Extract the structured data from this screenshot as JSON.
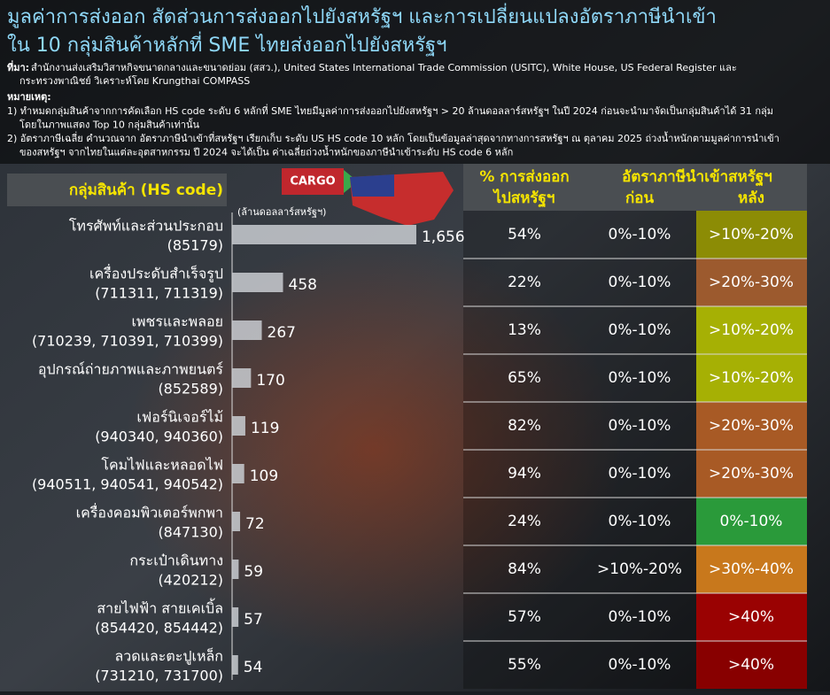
{
  "title": [
    "มูลค่าการส่งออก สัดส่วนการส่งออกไปยังสหรัฐฯ และการเปลี่ยนแปลงอัตราภาษีนำเข้า",
    "ใน 10 กลุ่มสินค้าหลักที่ SME ไทยส่งออกไปยังสหรัฐฯ"
  ],
  "source_label": "ที่มา:",
  "source": [
    "สำนักงานส่งเสริมวิสาหกิจขนาดกลางและขนาดย่อม (สสว.), United States International Trade Commission (USITC), White House, US Federal Register และ",
    "กระทรวงพาณิชย์ วิเคราะห์โดย Krungthai COMPASS"
  ],
  "notes_label": "หมายเหตุ:",
  "notes": [
    "1) ทำหมดกลุ่มสินค้าจากการคัดเลือก HS code ระดับ 6 หลักที่ SME ไทยมีมูลค่าการส่งออกไปยังสหรัฐฯ > 20 ล้านดอลลาร์สหรัฐฯ ในปี 2024 ก่อนจะนำมาจัดเป็นกลุ่มสินค้าได้ 31 กลุ่ม",
    "    โดยในภาพแสดง Top 10 กลุ่มสินค้าเท่านั้น",
    "2) อัตราภาษีเฉลี่ย คำนวณจาก อัตราภาษีนำเข้าที่สหรัฐฯ เรียกเก็บ ระดับ US HS code 10 หลัก โดยเป็นข้อมูลล่าสุดจากทางการสหรัฐฯ ณ ตุลาคม 2025 ถ่วงน้ำหนักตามมูลค่าการนำเข้า",
    "    ของสหรัฐฯ จากไทยในแต่ละอุตสาหกรรม ปี 2024 จะได้เป็น ค่าเฉลี่ยถ่วงน้ำหนักของภาษีนำเข้าระดับ HS code 6 หลัก"
  ],
  "graphic_label": "CARGO",
  "chart_data": {
    "type": "hbar",
    "header": "กลุ่มสินค้า (HS code)",
    "unit": "(ล้านดอลลาร์สหรัฐฯ)",
    "categories": [
      "โทรศัพท์และส่วนประกอบ",
      "เครื่องประดับสำเร็จรูป",
      "เพชรและพลอย",
      "อุปกรณ์ถ่ายภาพและภาพยนตร์",
      "เฟอร์นิเจอร์ไม้",
      "โคมไฟและหลอดไฟ",
      "เครื่องคอมพิวเตอร์พกพา",
      "กระเป๋าเดินทาง",
      "สายไฟฟ้า สายเคเบิ้ล",
      "ลวดและตะปูเหล็ก"
    ],
    "codes": [
      "(85179)",
      "(711311, 711319)",
      "(710239, 710391, 710399)",
      "(852589)",
      "(940340, 940360)",
      "(940511, 940541, 940542)",
      "(847130)",
      "(420212)",
      "(854420, 854442)",
      "(731210, 731700)"
    ],
    "values": [
      1656,
      458,
      267,
      170,
      119,
      109,
      72,
      59,
      57,
      54
    ],
    "value_labels": [
      "1,656",
      "458",
      "267",
      "170",
      "119",
      "109",
      "72",
      "59",
      "57",
      "54"
    ],
    "color": "#c9cdd1",
    "xlim": [
      0,
      1700
    ]
  },
  "table": {
    "share_header": [
      "% การส่งออก",
      "ไปสหรัฐฯ"
    ],
    "tariff_header": "อัตราภาษีนำเข้าสหรัฐฯ",
    "before_header": "ก่อน",
    "after_header": "หลัง",
    "rows": [
      [
        "54%",
        "0%-10%",
        ">10%-20%"
      ],
      [
        "22%",
        "0%-10%",
        ">20%-30%"
      ],
      [
        "13%",
        "0%-10%",
        ">10%-20%"
      ],
      [
        "65%",
        "0%-10%",
        ">10%-20%"
      ],
      [
        "82%",
        "0%-10%",
        ">20%-30%"
      ],
      [
        "94%",
        "0%-10%",
        ">20%-30%"
      ],
      [
        "24%",
        "0%-10%",
        "0%-10%"
      ],
      [
        "84%",
        ">10%-20%",
        ">30%-40%"
      ],
      [
        "57%",
        "0%-10%",
        ">40%"
      ],
      [
        "55%",
        "0%-10%",
        ">40%"
      ]
    ],
    "after_colors": [
      "#8c8c05",
      "#9c5a2e",
      "#a6b004",
      "#a6b004",
      "#a85a25",
      "#a85a25",
      "#2a9a3a",
      "#c8781c",
      "#9a0202",
      "#880000"
    ]
  }
}
